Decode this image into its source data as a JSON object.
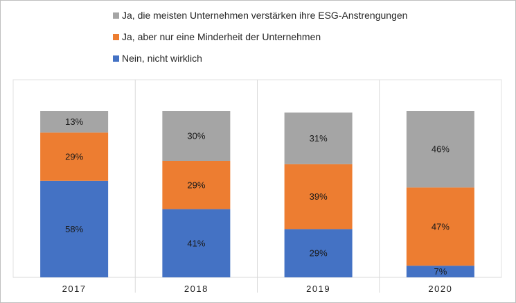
{
  "chart_data": {
    "type": "bar",
    "stacked": true,
    "categories": [
      "2017",
      "2018",
      "2019",
      "2020"
    ],
    "series": [
      {
        "name": "Nein, nicht wirklich",
        "color": "#4472C4",
        "values": [
          58,
          41,
          29,
          7
        ]
      },
      {
        "name": "Ja, aber nur eine Minderheit der Unternehmen",
        "color": "#ED7D31",
        "values": [
          29,
          29,
          39,
          47
        ]
      },
      {
        "name": "Ja, die meisten Unternehmen verstärken ihre ESG-Anstrengungen",
        "color": "#A5A5A5",
        "values": [
          13,
          30,
          31,
          46
        ]
      }
    ],
    "value_suffix": "%",
    "legend_position": "top-left",
    "legend_order": [
      2,
      1,
      0
    ],
    "grid": "vertical separators between categories"
  }
}
